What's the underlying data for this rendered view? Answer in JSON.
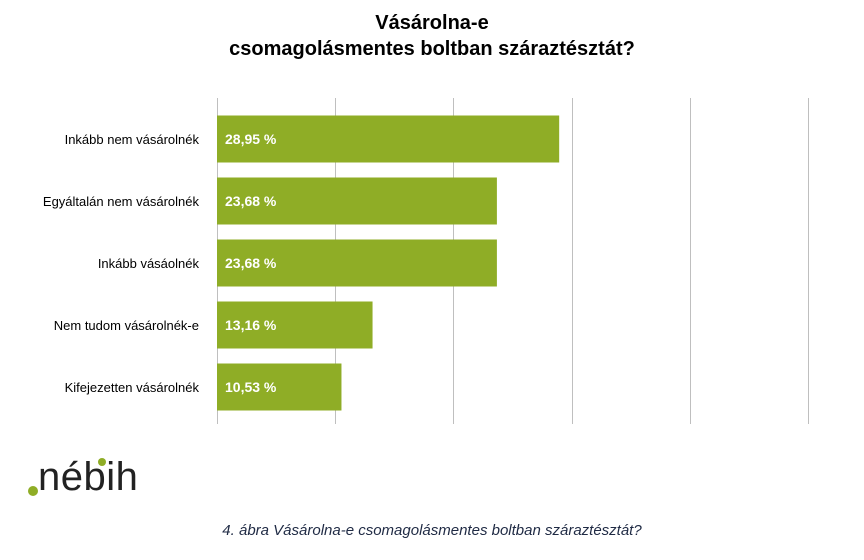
{
  "chart_data": {
    "type": "bar",
    "orientation": "horizontal",
    "title_lines": [
      "Vásárolna-e",
      "csomagolásmentes boltban száraztésztát?"
    ],
    "categories": [
      "Inkább nem vásárolnék",
      "Egyáltalán nem vásárolnék",
      "Inkább vásáolnék",
      "Nem tudom vásárolnék-e",
      "Kifejezetten vásárolnék"
    ],
    "values": [
      28.95,
      23.68,
      23.68,
      13.16,
      10.53
    ],
    "value_labels": [
      "28,95 %",
      "23,68 %",
      "23,68 %",
      "13,16 %",
      "10,53 %"
    ],
    "xlim": [
      0,
      50
    ],
    "x_gridlines": [
      0,
      10,
      20,
      30,
      40,
      50
    ],
    "grid": true,
    "x_tick_labels_shown": false,
    "legend": "none",
    "bar_color": "#8fad26",
    "gridline_color": "#bfbfbf"
  },
  "logo": {
    "text": "nébih",
    "accent_color": "#8fad26"
  },
  "caption": "4. ábra Vásárolna-e csomagolásmentes boltban száraztésztát?"
}
